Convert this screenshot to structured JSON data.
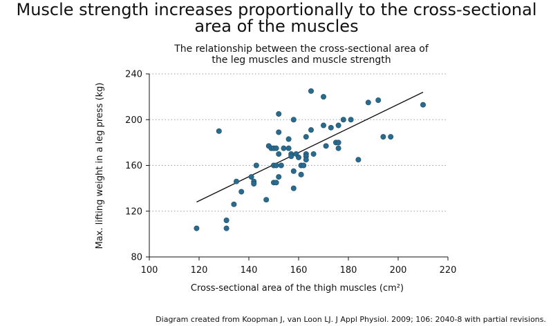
{
  "page": {
    "title_lines": [
      "Muscle strength increases proportionally to the cross-sectional",
      "area of the muscles"
    ],
    "source": "Diagram created from Koopman J, van Loon LJ. J Appl Physiol. 2009; 106: 2040-8 with partial revisions."
  },
  "chart_data": {
    "type": "scatter",
    "title_lines": [
      "The relationship between the cross-sectional area of",
      "the leg muscles and muscle strength"
    ],
    "xlabel": "Cross-sectional area of the thigh muscles (cm²)",
    "ylabel": "Max. lifting weight in a leg press (kg)",
    "xlim": [
      100,
      220
    ],
    "ylim": [
      80,
      240
    ],
    "xticks": [
      100,
      120,
      140,
      160,
      180,
      200,
      220
    ],
    "yticks": [
      80,
      120,
      160,
      200,
      240
    ],
    "grid": "horizontal dotted",
    "point_color": "#2a6a8c",
    "line_color": "#111111",
    "points": [
      [
        119,
        105
      ],
      [
        128,
        190
      ],
      [
        131,
        112
      ],
      [
        131,
        105
      ],
      [
        134,
        126
      ],
      [
        135,
        146
      ],
      [
        137,
        137
      ],
      [
        141,
        150
      ],
      [
        142,
        146
      ],
      [
        142,
        144
      ],
      [
        143,
        160
      ],
      [
        147,
        130
      ],
      [
        148,
        177
      ],
      [
        149,
        175
      ],
      [
        150,
        175
      ],
      [
        150,
        160
      ],
      [
        150,
        145
      ],
      [
        151,
        175
      ],
      [
        151,
        160
      ],
      [
        151,
        145
      ],
      [
        152,
        205
      ],
      [
        152,
        189
      ],
      [
        152,
        170
      ],
      [
        152,
        150
      ],
      [
        153,
        160
      ],
      [
        154,
        175
      ],
      [
        156,
        183
      ],
      [
        156,
        175
      ],
      [
        157,
        170
      ],
      [
        157,
        168
      ],
      [
        158,
        155
      ],
      [
        158,
        140
      ],
      [
        158,
        200
      ],
      [
        159,
        170
      ],
      [
        160,
        167
      ],
      [
        161,
        160
      ],
      [
        161,
        152
      ],
      [
        162,
        160
      ],
      [
        163,
        170
      ],
      [
        163,
        168
      ],
      [
        163,
        165
      ],
      [
        163,
        185
      ],
      [
        165,
        225
      ],
      [
        165,
        191
      ],
      [
        166,
        170
      ],
      [
        170,
        220
      ],
      [
        170,
        195
      ],
      [
        171,
        177
      ],
      [
        173,
        193
      ],
      [
        175,
        180
      ],
      [
        176,
        195
      ],
      [
        176,
        180
      ],
      [
        176,
        175
      ],
      [
        178,
        200
      ],
      [
        181,
        200
      ],
      [
        184,
        165
      ],
      [
        188,
        215
      ],
      [
        192,
        217
      ],
      [
        194,
        185
      ],
      [
        197,
        185
      ],
      [
        210,
        213
      ]
    ],
    "trendline": [
      [
        119,
        128
      ],
      [
        210,
        224
      ]
    ]
  }
}
